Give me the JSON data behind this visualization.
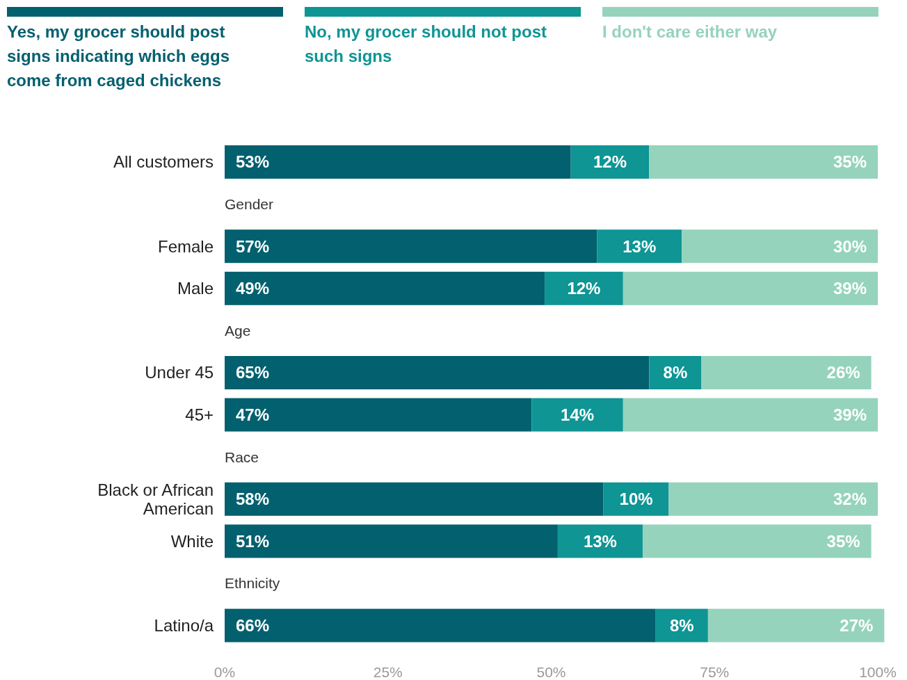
{
  "chart_data": {
    "type": "bar",
    "orientation": "horizontal",
    "stacked": true,
    "categories": [
      "All customers",
      "Gender",
      "Female",
      "Male",
      "Age",
      "Under 45",
      "45+",
      "Race",
      "Black or African American",
      "White",
      "Ethnicity",
      "Latino/a"
    ],
    "series": [
      {
        "name": "Yes, my grocer should post signs indicating which eggs come from caged chickens",
        "color": "#03606f",
        "values": [
          53,
          null,
          57,
          49,
          null,
          65,
          47,
          null,
          58,
          51,
          null,
          66
        ],
        "value_labels": [
          "53%",
          null,
          "57%",
          "49%",
          null,
          "65%",
          "47%",
          null,
          "58%",
          "51%",
          null,
          "66%"
        ]
      },
      {
        "name": "No, my grocer should not post such signs",
        "color": "#0e9594",
        "values": [
          12,
          null,
          13,
          12,
          null,
          8,
          14,
          null,
          10,
          13,
          null,
          8
        ],
        "value_labels": [
          "12%",
          null,
          "13%",
          "12%",
          null,
          "8%",
          "14%",
          null,
          "10%",
          "13%",
          null,
          "8%"
        ]
      },
      {
        "name": "I don't care either way",
        "color": "#95d3bc",
        "values": [
          35,
          null,
          30,
          39,
          null,
          26,
          39,
          null,
          32,
          35,
          null,
          27
        ],
        "value_labels": [
          "35%",
          null,
          "30%",
          "39%",
          null,
          "26%",
          "39%",
          null,
          "32%",
          "35%",
          null,
          "27%"
        ]
      }
    ],
    "xlim": [
      0,
      101
    ],
    "xticks": [
      {
        "value": 0,
        "label": "0%"
      },
      {
        "value": 25,
        "label": "25%"
      },
      {
        "value": 50,
        "label": "50%"
      },
      {
        "value": 75,
        "label": "75%"
      },
      {
        "value": 100,
        "label": "100%"
      }
    ],
    "legend": "top left",
    "grid": false
  }
}
